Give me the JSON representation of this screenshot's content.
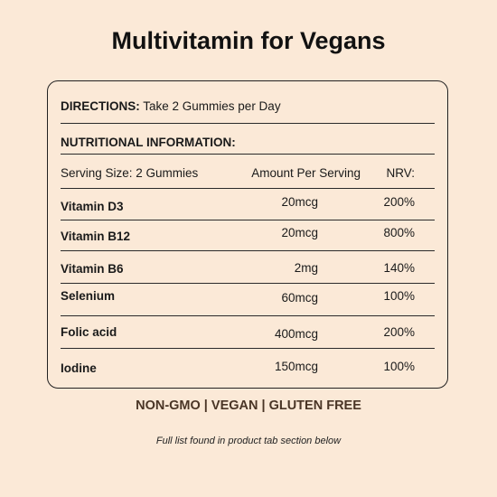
{
  "title": "Multivitamin for Vegans",
  "directions": {
    "label": "DIRECTIONS:",
    "text": "Take 2 Gummies per Day"
  },
  "nutritional_heading": "NUTRITIONAL INFORMATION:",
  "table": {
    "headers": {
      "serving": "Serving Size: 2 Gummies",
      "amount": "Amount Per Serving",
      "nrv": "NRV:"
    },
    "rows": [
      {
        "name": "Vitamin D3",
        "amount": "20mcg",
        "nrv": "200%"
      },
      {
        "name": "Vitamin B12",
        "amount": "20mcg",
        "nrv": "800%"
      },
      {
        "name": "Vitamin B6",
        "amount": "2mg",
        "nrv": "140%"
      },
      {
        "name": "Selenium",
        "amount": "60mcg",
        "nrv": "100%"
      },
      {
        "name": "Folic acid",
        "amount": "400mcg",
        "nrv": "200%"
      },
      {
        "name": "Iodine",
        "amount": "150mcg",
        "nrv": "100%"
      }
    ]
  },
  "claims": "NON-GMO | VEGAN | GLUTEN FREE",
  "note": "Full list found in product tab section below"
}
